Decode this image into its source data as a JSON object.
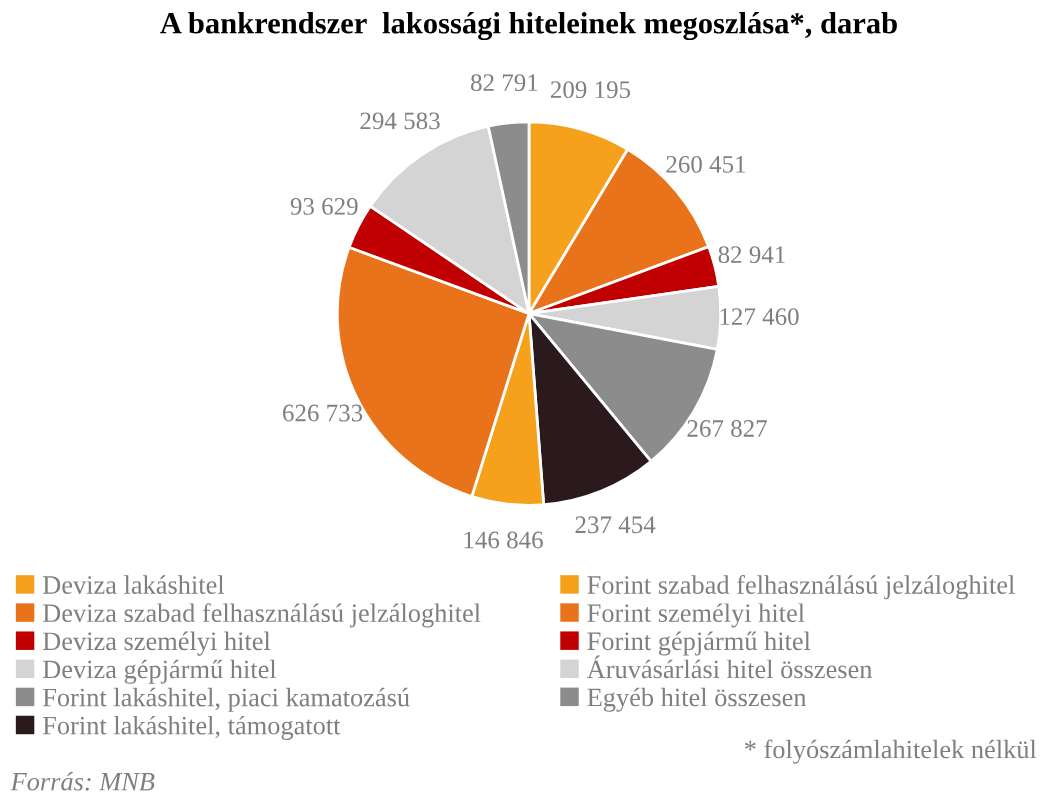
{
  "chart_data": {
    "type": "pie",
    "title": "A bankrendszer  lakossági hiteleinek megoszlása*, darab",
    "categories": [
      "Deviza lakáshitel",
      "Deviza szabad felhasználású jelzáloghitel",
      "Deviza személyi hitel",
      "Deviza gépjármű hitel",
      "Forint lakáshitel, piaci kamatozású",
      "Forint lakáshitel, támogatott",
      "Forint szabad felhasználású jelzáloghitel",
      "Forint személyi hitel",
      "Forint gépjármű hitel",
      "Áruvásárlási hitel összesen",
      "Egyéb hitel összesen"
    ],
    "values": [
      209195,
      260451,
      82941,
      127460,
      267827,
      237454,
      146846,
      626733,
      93629,
      294583,
      82791
    ],
    "value_labels": [
      "209 195",
      "260 451",
      "82 941",
      "127 460",
      "267 827",
      "237 454",
      "146 846",
      "626 733",
      "93 629",
      "294 583",
      "82 791"
    ],
    "colors": [
      "#f5a11c",
      "#e8731a",
      "#c00000",
      "#d4d4d4",
      "#8c8c8c",
      "#2a1a1e",
      "#f5a11c",
      "#e8731a",
      "#c00000",
      "#d4d4d4",
      "#8c8c8c"
    ],
    "legend": "bottom",
    "annotations": [
      "Forrás: MNB",
      "* folyószámlahitelek nélkül"
    ]
  }
}
